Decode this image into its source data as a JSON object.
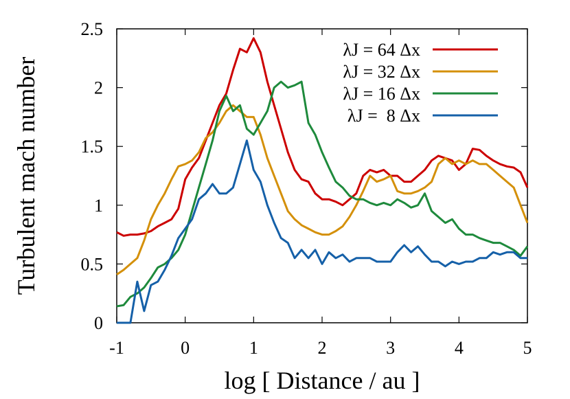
{
  "chart_data": {
    "type": "line",
    "xlabel": "log [ Distance / au ]",
    "ylabel": "Turbulent mach number",
    "x": [
      -1.0,
      -0.9,
      -0.8,
      -0.7,
      -0.6,
      -0.5,
      -0.4,
      -0.3,
      -0.2,
      -0.1,
      0.0,
      0.1,
      0.2,
      0.3,
      0.4,
      0.5,
      0.6,
      0.7,
      0.8,
      0.9,
      1.0,
      1.1,
      1.2,
      1.3,
      1.4,
      1.5,
      1.6,
      1.7,
      1.8,
      1.9,
      2.0,
      2.1,
      2.2,
      2.3,
      2.4,
      2.5,
      2.6,
      2.7,
      2.8,
      2.9,
      3.0,
      3.1,
      3.2,
      3.3,
      3.4,
      3.5,
      3.6,
      3.7,
      3.8,
      3.9,
      4.0,
      4.1,
      4.2,
      4.3,
      4.4,
      4.5,
      4.6,
      4.7,
      4.8,
      4.9,
      5.0
    ],
    "series": [
      {
        "name": "λJ = 64 Δx",
        "color": "#cc0000",
        "values": [
          0.77,
          0.74,
          0.75,
          0.75,
          0.76,
          0.78,
          0.82,
          0.85,
          0.88,
          0.97,
          1.22,
          1.32,
          1.4,
          1.55,
          1.7,
          1.85,
          1.95,
          2.15,
          2.33,
          2.3,
          2.42,
          2.3,
          2.05,
          1.85,
          1.65,
          1.45,
          1.3,
          1.22,
          1.2,
          1.1,
          1.05,
          1.05,
          1.03,
          1.0,
          1.05,
          1.1,
          1.25,
          1.3,
          1.28,
          1.3,
          1.25,
          1.25,
          1.2,
          1.2,
          1.25,
          1.3,
          1.38,
          1.42,
          1.4,
          1.38,
          1.3,
          1.35,
          1.48,
          1.47,
          1.42,
          1.38,
          1.35,
          1.33,
          1.32,
          1.28,
          1.15
        ]
      },
      {
        "name": "λJ = 32 Δx",
        "color": "#d4900a",
        "values": [
          0.41,
          0.45,
          0.5,
          0.55,
          0.7,
          0.88,
          1.0,
          1.1,
          1.22,
          1.33,
          1.35,
          1.38,
          1.45,
          1.57,
          1.62,
          1.7,
          1.8,
          1.85,
          1.8,
          1.75,
          1.75,
          1.6,
          1.4,
          1.25,
          1.1,
          0.95,
          0.88,
          0.83,
          0.8,
          0.77,
          0.75,
          0.75,
          0.78,
          0.82,
          0.9,
          1.0,
          1.12,
          1.25,
          1.2,
          1.22,
          1.25,
          1.12,
          1.1,
          1.1,
          1.12,
          1.15,
          1.2,
          1.35,
          1.4,
          1.35,
          1.38,
          1.35,
          1.38,
          1.35,
          1.35,
          1.3,
          1.25,
          1.2,
          1.15,
          1.0,
          0.85
        ]
      },
      {
        "name": "λJ = 16 Δx",
        "color": "#1e8a3c",
        "values": [
          0.14,
          0.15,
          0.22,
          0.25,
          0.3,
          0.38,
          0.47,
          0.5,
          0.55,
          0.62,
          0.75,
          0.95,
          1.15,
          1.35,
          1.55,
          1.8,
          1.93,
          1.8,
          1.85,
          1.65,
          1.6,
          1.7,
          1.8,
          2.0,
          2.05,
          2.0,
          2.02,
          2.05,
          1.7,
          1.6,
          1.45,
          1.32,
          1.2,
          1.15,
          1.08,
          1.05,
          1.05,
          1.02,
          1.0,
          1.02,
          1.0,
          1.05,
          1.02,
          0.98,
          1.0,
          1.1,
          0.95,
          0.9,
          0.85,
          0.88,
          0.8,
          0.75,
          0.75,
          0.72,
          0.7,
          0.68,
          0.68,
          0.65,
          0.62,
          0.57,
          0.65
        ]
      },
      {
        "name": "λJ =  8 Δx",
        "color": "#1560a8",
        "values": [
          0,
          0,
          0,
          0.35,
          0.1,
          0.32,
          0.35,
          0.45,
          0.57,
          0.72,
          0.8,
          0.88,
          1.05,
          1.1,
          1.18,
          1.1,
          1.1,
          1.15,
          1.35,
          1.55,
          1.3,
          1.2,
          1.0,
          0.85,
          0.72,
          0.68,
          0.55,
          0.62,
          0.55,
          0.62,
          0.5,
          0.6,
          0.55,
          0.58,
          0.52,
          0.55,
          0.55,
          0.55,
          0.52,
          0.52,
          0.52,
          0.6,
          0.66,
          0.6,
          0.65,
          0.58,
          0.52,
          0.52,
          0.48,
          0.52,
          0.5,
          0.52,
          0.52,
          0.55,
          0.55,
          0.6,
          0.58,
          0.6,
          0.6,
          0.55,
          0.55
        ]
      }
    ],
    "xlim": [
      -1,
      5
    ],
    "xticks": [
      -1,
      0,
      1,
      2,
      3,
      4,
      5
    ],
    "ylim": [
      0,
      2.5
    ],
    "yticks": [
      0,
      0.5,
      1,
      1.5,
      2,
      2.5
    ],
    "legend": "top-right"
  }
}
